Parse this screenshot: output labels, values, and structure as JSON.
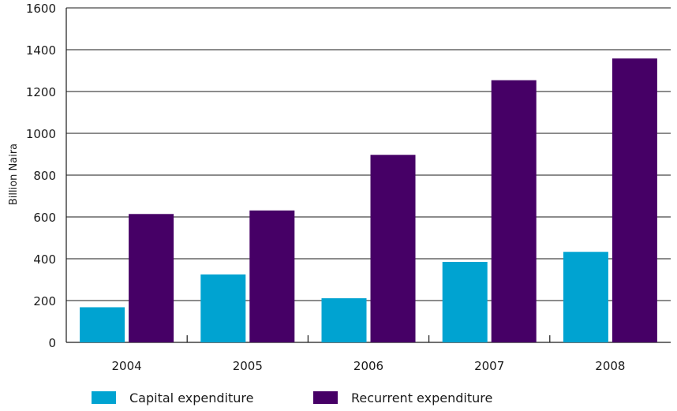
{
  "chart_data": {
    "type": "bar",
    "title": "",
    "xlabel": "",
    "ylabel": "Billion Naira",
    "ylim": [
      0,
      1600
    ],
    "yticks": [
      0,
      200,
      400,
      600,
      800,
      1000,
      1200,
      1400,
      1600
    ],
    "categories": [
      "2004",
      "2005",
      "2006",
      "2007",
      "2008"
    ],
    "series": [
      {
        "name": "Capital expenditure",
        "color": "#00a3d1",
        "values": [
          168,
          325,
          211,
          385,
          433
        ]
      },
      {
        "name": "Recurrent expenditure",
        "color": "#460066",
        "values": [
          614,
          631,
          897,
          1254,
          1358
        ]
      }
    ],
    "grid": "horizontal",
    "legend_position": "bottom"
  }
}
